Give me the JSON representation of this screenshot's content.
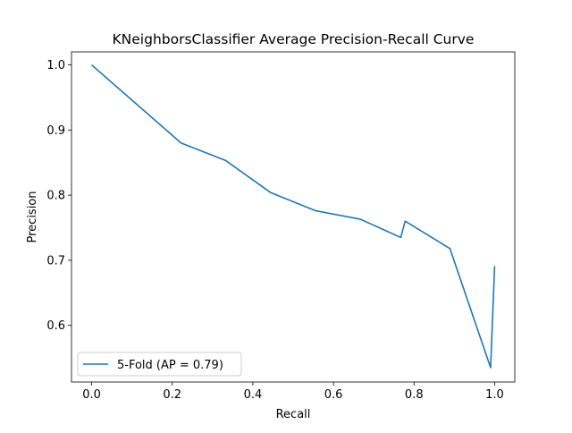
{
  "chart_data": {
    "type": "line",
    "title": "KNeighborsClassifier Average Precision-Recall Curve",
    "xlabel": "Recall",
    "ylabel": "Precision",
    "xlim": [
      -0.05,
      1.05
    ],
    "ylim": [
      0.513,
      1.02
    ],
    "xticks": [
      0.0,
      0.2,
      0.4,
      0.6,
      0.8,
      1.0
    ],
    "yticks": [
      0.6,
      0.7,
      0.8,
      0.9,
      1.0
    ],
    "xtick_labels": [
      "0.0",
      "0.2",
      "0.4",
      "0.6",
      "0.8",
      "1.0"
    ],
    "ytick_labels": [
      "0.6",
      "0.7",
      "0.8",
      "0.9",
      "1.0"
    ],
    "grid": false,
    "legend_position": "lower-left",
    "series": [
      {
        "name": "5-Fold (AP = 0.79)",
        "color": "#1f77b4",
        "x": [
          0.0,
          0.222,
          0.333,
          0.444,
          0.556,
          0.667,
          0.767,
          0.778,
          0.889,
          0.99,
          1.0
        ],
        "y": [
          1.0,
          0.88,
          0.853,
          0.804,
          0.776,
          0.763,
          0.735,
          0.76,
          0.718,
          0.535,
          0.691
        ]
      }
    ]
  }
}
